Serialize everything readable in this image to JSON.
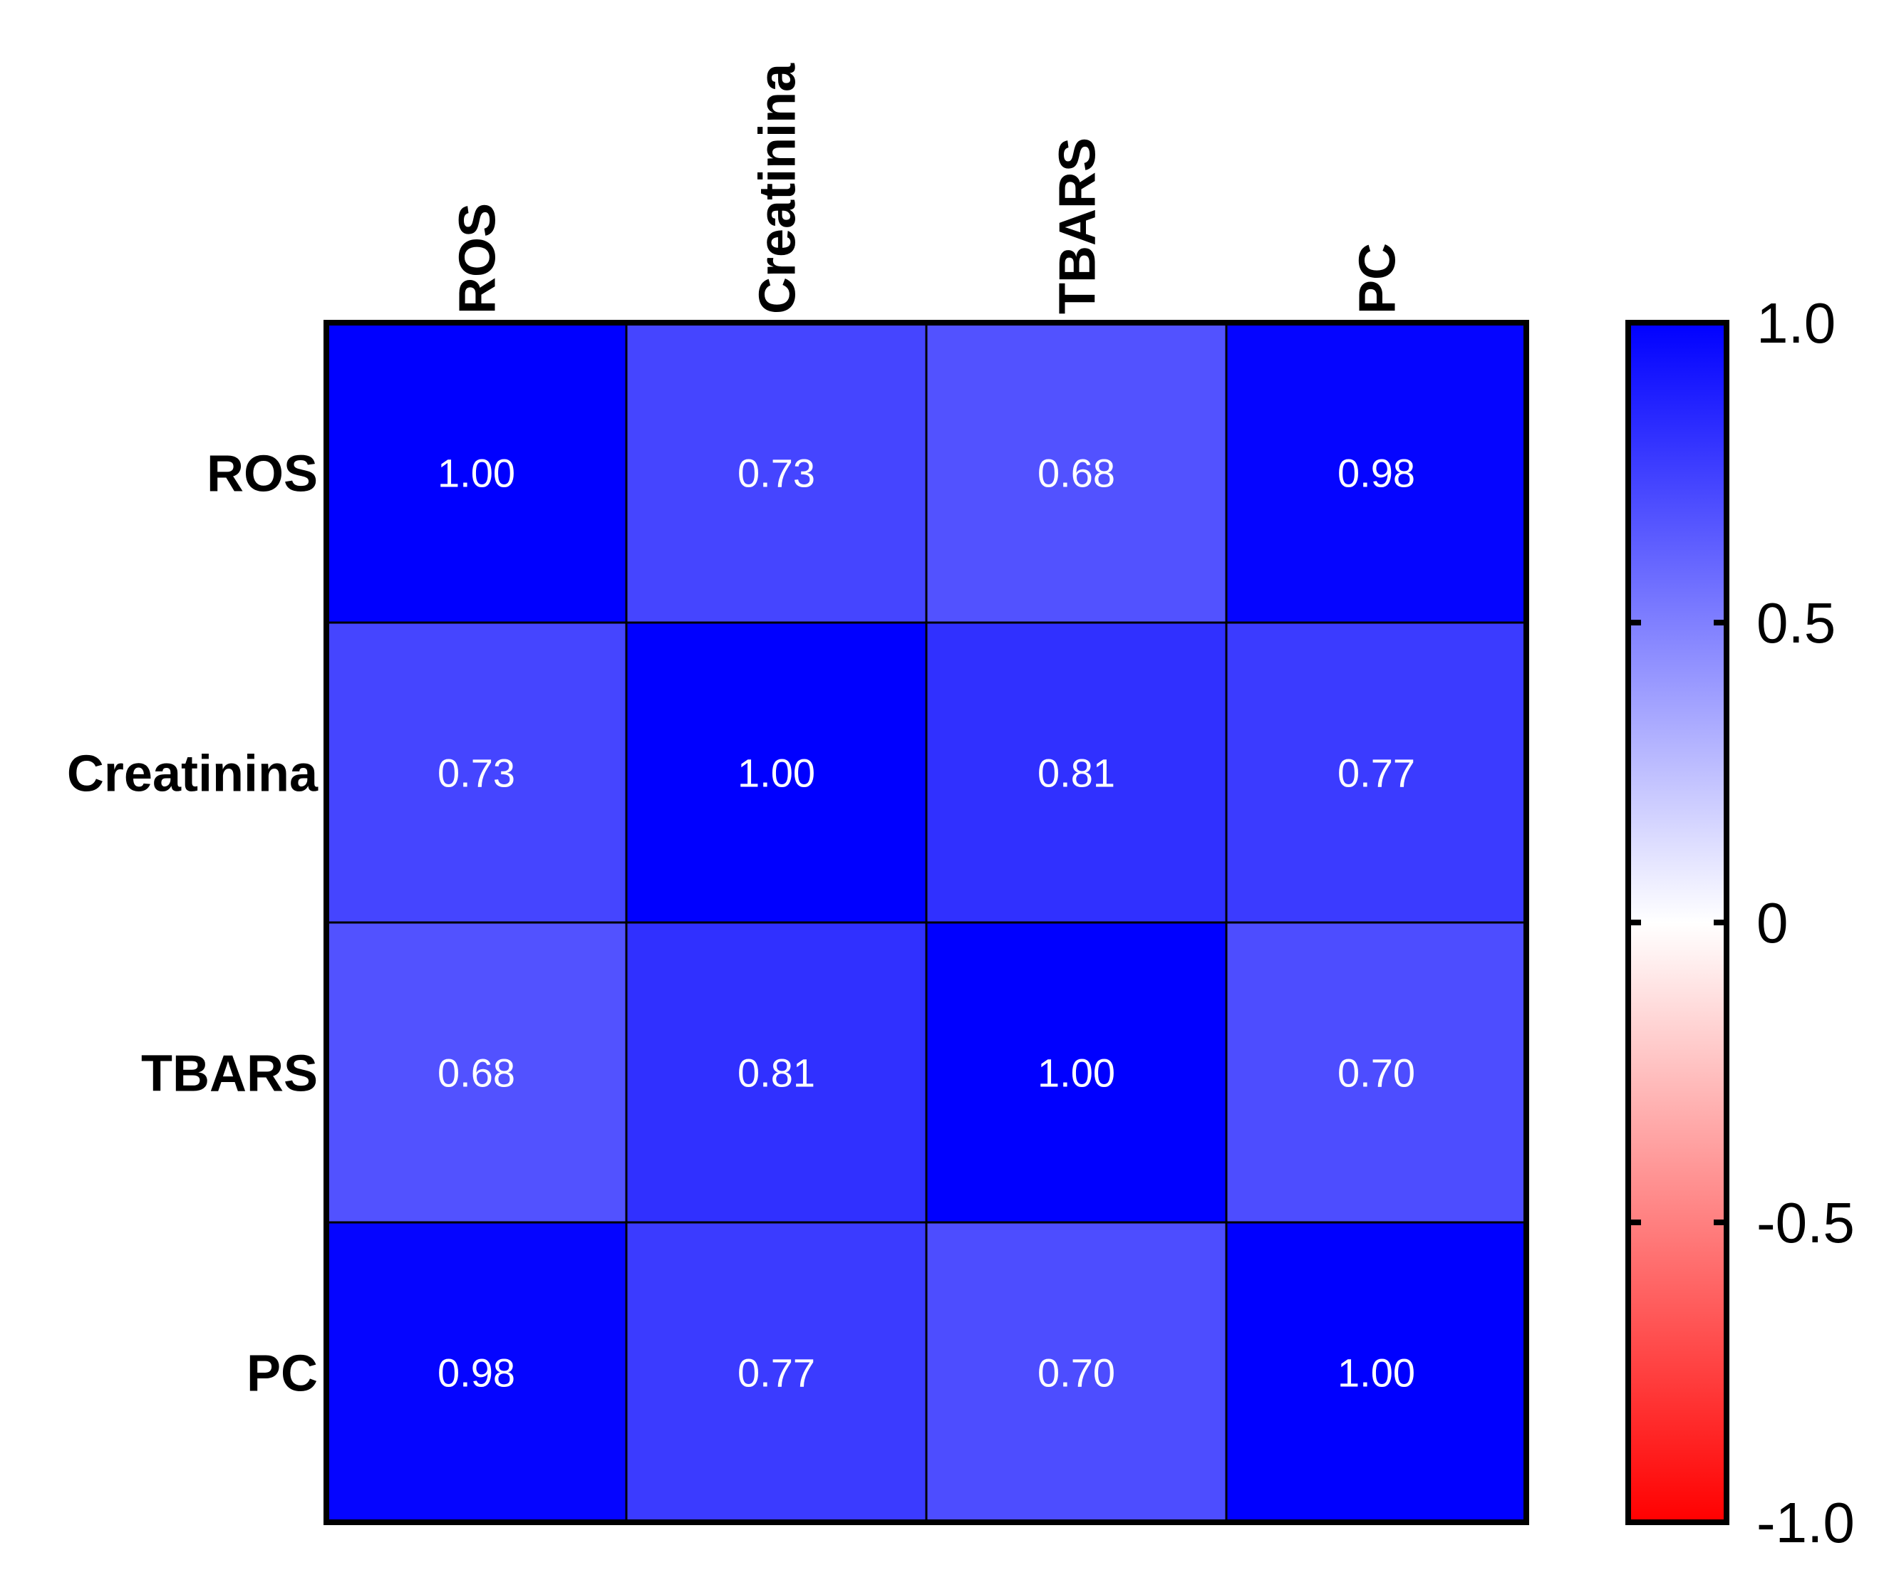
{
  "chart_data": {
    "type": "heatmap",
    "title": "",
    "xlabel": "",
    "ylabel": "",
    "columns": [
      "ROS",
      "Creatinina",
      "TBARS",
      "PC"
    ],
    "rows": [
      "ROS",
      "Creatinina",
      "TBARS",
      "PC"
    ],
    "values": [
      [
        1.0,
        0.73,
        0.68,
        0.98
      ],
      [
        0.73,
        1.0,
        0.81,
        0.77
      ],
      [
        0.68,
        0.81,
        1.0,
        0.7
      ],
      [
        0.98,
        0.77,
        0.7,
        1.0
      ]
    ],
    "value_labels": [
      [
        "1.00",
        "0.73",
        "0.68",
        "0.98"
      ],
      [
        "0.73",
        "1.00",
        "0.81",
        "0.77"
      ],
      [
        "0.68",
        "0.81",
        "1.00",
        "0.70"
      ],
      [
        "0.98",
        "0.77",
        "0.70",
        "1.00"
      ]
    ],
    "colorbar": {
      "range": [
        -1.0,
        1.0
      ],
      "ticks": [
        1.0,
        0.5,
        0,
        -0.5,
        -1.0
      ],
      "tick_labels": [
        "1.0",
        "0.5",
        "0",
        "-0.5",
        "-1.0"
      ],
      "low_color": "#ff0000",
      "mid_color": "#ffffff",
      "high_color": "#0000ff"
    },
    "legend_position": "right"
  }
}
